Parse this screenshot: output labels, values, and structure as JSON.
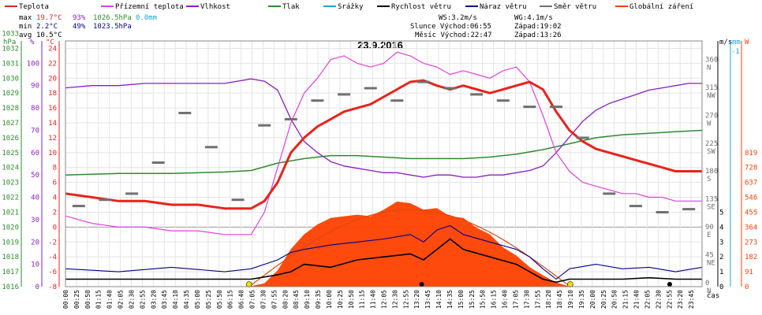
{
  "chart_data": {
    "type": "line",
    "title": "23.9.2016",
    "legend": [
      {
        "label": "Teplota",
        "color": "#e8231b"
      },
      {
        "label": "Přízemní teplota",
        "color": "#e040e0"
      },
      {
        "label": "Vlhkost",
        "color": "#8a1fc0"
      },
      {
        "label": "Tlak",
        "color": "#2e8b2e"
      },
      {
        "label": "Srážky",
        "color": "#1aa6d6"
      },
      {
        "label": "Rychlost větru",
        "color": "#000000"
      },
      {
        "label": "Náraz větru",
        "color": "#00008b"
      },
      {
        "label": "Směr větru",
        "color": "#707070"
      },
      {
        "label": "Globální záření",
        "color": "#ff4000"
      }
    ],
    "stats": {
      "max_label": "max",
      "max_temp": "19.7°C",
      "max_hum": "93%",
      "max_press": "1026.5hPa",
      "max_rain": "0.0mm",
      "min_label": "min",
      "min_temp": "2.2°C",
      "min_hum": "49%",
      "min_press": "1023.5hPa",
      "avg_label": "avg",
      "avg_temp": "10.5°C"
    },
    "info": {
      "ws": "WS:3.2m/s",
      "wg": "WG:4.1m/s",
      "sun": "Slunce Východ:06:55",
      "sun_set": "Západ:19:02",
      "moon": "Měsíc Východ:22:47",
      "moon_set": "Západ:13:26"
    },
    "units": {
      "hpa": "hPa",
      "pct": "%",
      "deg": "°C",
      "ms": "m/s",
      "mm": "mm",
      "w": "W",
      "cas": "čas"
    },
    "axes": {
      "hpa_ticks": [
        1016,
        1017,
        1018,
        1019,
        1020,
        1021,
        1022,
        1023,
        1024,
        1025,
        1026,
        1027,
        1028,
        1029,
        1030,
        1031,
        1032,
        1033
      ],
      "pct_ticks": [
        0,
        10,
        20,
        30,
        40,
        50,
        60,
        70,
        80,
        90,
        100
      ],
      "temp_ticks": [
        -8,
        -6,
        -4,
        -2,
        0,
        2,
        4,
        6,
        8,
        10,
        12,
        14,
        16,
        18,
        20,
        22,
        24
      ],
      "dir_ticks": [
        "0",
        "45",
        "90",
        "135",
        "180",
        "225",
        "270",
        "315",
        "360"
      ],
      "dir_labels": [
        "N",
        "NE",
        "E",
        "SE",
        "S",
        "SW",
        "W",
        "NW",
        "N"
      ],
      "ms_ticks": [
        0,
        1,
        2,
        3,
        4,
        5
      ],
      "mm_ticks": [
        "-1"
      ],
      "w_ticks": [
        0,
        91,
        182,
        273,
        364,
        455,
        546,
        637,
        728,
        819
      ],
      "temp_range": [
        -8,
        25
      ]
    },
    "x_ticks": [
      "00:00",
      "00:25",
      "00:50",
      "01:15",
      "01:40",
      "02:05",
      "02:30",
      "02:55",
      "03:20",
      "03:45",
      "04:10",
      "04:35",
      "05:00",
      "05:25",
      "05:50",
      "06:15",
      "06:40",
      "07:05",
      "07:30",
      "07:55",
      "08:20",
      "08:45",
      "09:10",
      "09:35",
      "10:00",
      "10:25",
      "10:50",
      "11:15",
      "11:40",
      "12:05",
      "12:30",
      "12:55",
      "13:20",
      "13:45",
      "14:10",
      "14:35",
      "15:00",
      "15:25",
      "15:50",
      "16:15",
      "16:40",
      "17:05",
      "17:30",
      "17:55",
      "18:20",
      "18:45",
      "19:10",
      "19:35",
      "20:00",
      "20:25",
      "20:50",
      "21:15",
      "21:40",
      "22:05",
      "22:30",
      "22:55",
      "23:20",
      "23:45"
    ],
    "series": [
      {
        "name": "Teplota",
        "unit": "°C",
        "hours": [
          0,
          1,
          2,
          3,
          4,
          5,
          6,
          7,
          7.5,
          8,
          8.5,
          9,
          9.5,
          10,
          10.5,
          11,
          11.5,
          12,
          12.5,
          13,
          13.5,
          14,
          14.5,
          15,
          15.5,
          16,
          16.5,
          17,
          17.5,
          18,
          18.5,
          19,
          19.5,
          20,
          20.5,
          21,
          21.5,
          22,
          22.5,
          23,
          23.5,
          24
        ],
        "values": [
          4.5,
          4.0,
          3.5,
          3.5,
          3.0,
          3.0,
          2.5,
          2.5,
          3.5,
          6.0,
          10.0,
          12.0,
          13.5,
          14.5,
          15.5,
          16.0,
          16.5,
          17.5,
          18.5,
          19.5,
          19.7,
          19.0,
          18.5,
          19.0,
          18.5,
          18.0,
          18.5,
          19.0,
          19.5,
          18.5,
          15.5,
          13.0,
          11.5,
          10.5,
          10.0,
          9.5,
          9.0,
          8.5,
          8.0,
          7.5,
          7.5,
          7.5
        ]
      },
      {
        "name": "Přízemní teplota",
        "unit": "°C",
        "hours": [
          0,
          1,
          2,
          3,
          4,
          5,
          6,
          7,
          7.5,
          8,
          8.5,
          9,
          9.5,
          10,
          10.5,
          11,
          11.5,
          12,
          12.5,
          13,
          13.5,
          14,
          14.5,
          15,
          15.5,
          16,
          16.5,
          17,
          17.5,
          18,
          18.5,
          19,
          19.5,
          20,
          20.5,
          21,
          21.5,
          22,
          22.5,
          23,
          23.5,
          24
        ],
        "values": [
          1.5,
          0.5,
          0.0,
          0.0,
          -0.5,
          -0.5,
          -1.0,
          -1.0,
          2.0,
          8.0,
          14.0,
          18.0,
          20.0,
          22.5,
          23.0,
          22.0,
          21.5,
          22.0,
          23.5,
          23.0,
          22.0,
          21.5,
          20.5,
          21.0,
          20.5,
          20.0,
          21.0,
          21.5,
          19.5,
          15.0,
          10.0,
          7.5,
          6.0,
          5.5,
          5.0,
          4.5,
          4.5,
          4.0,
          4.0,
          3.5,
          3.5,
          3.5
        ]
      },
      {
        "name": "Vlhkost",
        "unit": "%",
        "hours": [
          0,
          1,
          2,
          3,
          4,
          5,
          6,
          7,
          7.5,
          8,
          8.5,
          9,
          9.5,
          10,
          10.5,
          11,
          11.5,
          12,
          12.5,
          13,
          13.5,
          14,
          14.5,
          15,
          15.5,
          16,
          16.5,
          17,
          17.5,
          18,
          18.5,
          19,
          19.5,
          20,
          20.5,
          21,
          21.5,
          22,
          22.5,
          23,
          23.5,
          24
        ],
        "values": [
          89,
          90,
          90,
          91,
          91,
          91,
          91,
          93,
          92,
          88,
          75,
          65,
          60,
          56,
          54,
          53,
          52,
          51,
          51,
          50,
          49,
          50,
          50,
          49,
          49,
          50,
          50,
          51,
          52,
          54,
          60,
          67,
          74,
          79,
          82,
          84,
          86,
          88,
          89,
          90,
          91,
          91
        ]
      },
      {
        "name": "Tlak",
        "unit": "hPa",
        "hours": [
          0,
          2,
          4,
          6,
          7,
          8,
          9,
          10,
          11,
          12,
          13,
          14,
          15,
          16,
          17,
          18,
          19,
          20,
          21,
          22,
          23,
          24
        ],
        "values": [
          1023.5,
          1023.6,
          1023.6,
          1023.7,
          1023.8,
          1024.3,
          1024.6,
          1024.8,
          1024.8,
          1024.7,
          1024.6,
          1024.6,
          1024.6,
          1024.7,
          1024.9,
          1025.2,
          1025.6,
          1026.0,
          1026.2,
          1026.3,
          1026.4,
          1026.5
        ]
      },
      {
        "name": "Globální záření",
        "unit": "W",
        "hours": [
          0,
          6.9,
          7.5,
          8,
          8.5,
          9,
          9.5,
          10,
          10.5,
          11,
          11.5,
          12,
          12.5,
          13,
          13.5,
          14,
          14.5,
          15,
          15.5,
          16,
          16.5,
          17,
          17.5,
          18,
          18.5,
          19.03,
          24
        ],
        "values": [
          0,
          0,
          20,
          100,
          230,
          320,
          380,
          420,
          430,
          440,
          430,
          470,
          520,
          510,
          470,
          480,
          430,
          420,
          360,
          320,
          240,
          190,
          120,
          70,
          25,
          0,
          0
        ]
      },
      {
        "name": "Rychlost větru",
        "unit": "m/s",
        "hours": [
          0,
          2,
          4,
          6,
          7,
          8,
          8.5,
          9,
          10,
          11,
          12,
          13,
          13.5,
          14,
          14.5,
          15,
          16,
          17,
          17.5,
          18,
          18.5,
          19,
          20,
          21,
          22,
          23,
          24
        ],
        "values": [
          0.5,
          0.5,
          0.5,
          0.5,
          0.5,
          0.8,
          1.0,
          1.5,
          1.3,
          1.8,
          2.0,
          2.2,
          1.8,
          2.5,
          3.2,
          2.5,
          2.0,
          1.5,
          1.0,
          0.5,
          0.3,
          0.5,
          0.5,
          0.5,
          0.6,
          0.5,
          0.5
        ]
      },
      {
        "name": "Náraz větru",
        "unit": "m/s",
        "hours": [
          0,
          2,
          4,
          6,
          7,
          8,
          8.5,
          9,
          10,
          11,
          12,
          13,
          13.5,
          14,
          14.5,
          15,
          16,
          17,
          17.5,
          18,
          18.5,
          19,
          20,
          21,
          22,
          23,
          24
        ],
        "values": [
          1.2,
          1.0,
          1.3,
          1.0,
          1.2,
          1.8,
          2.3,
          2.5,
          2.8,
          3.0,
          3.2,
          3.5,
          3.0,
          3.8,
          4.1,
          3.5,
          3.0,
          2.5,
          2.0,
          1.2,
          0.5,
          1.2,
          1.5,
          1.2,
          1.3,
          1.0,
          1.3
        ]
      },
      {
        "name": "Směr větru",
        "unit": "°",
        "hours": [
          0.5,
          1.5,
          2.5,
          3.5,
          4.5,
          5.5,
          6.5,
          7.5,
          8.5,
          9.5,
          10.5,
          11.5,
          12.5,
          13.5,
          14.5,
          15.5,
          16.5,
          17.5,
          18.5,
          19.5,
          20.5,
          21.5,
          22.5,
          23.5
        ],
        "values": [
          130,
          140,
          150,
          200,
          280,
          225,
          140,
          260,
          270,
          300,
          310,
          320,
          300,
          330,
          320,
          310,
          300,
          290,
          290,
          240,
          150,
          130,
          120,
          125
        ]
      },
      {
        "name": "Srážky",
        "unit": "mm",
        "hours": [
          0,
          24
        ],
        "values": [
          0,
          0
        ]
      }
    ]
  }
}
